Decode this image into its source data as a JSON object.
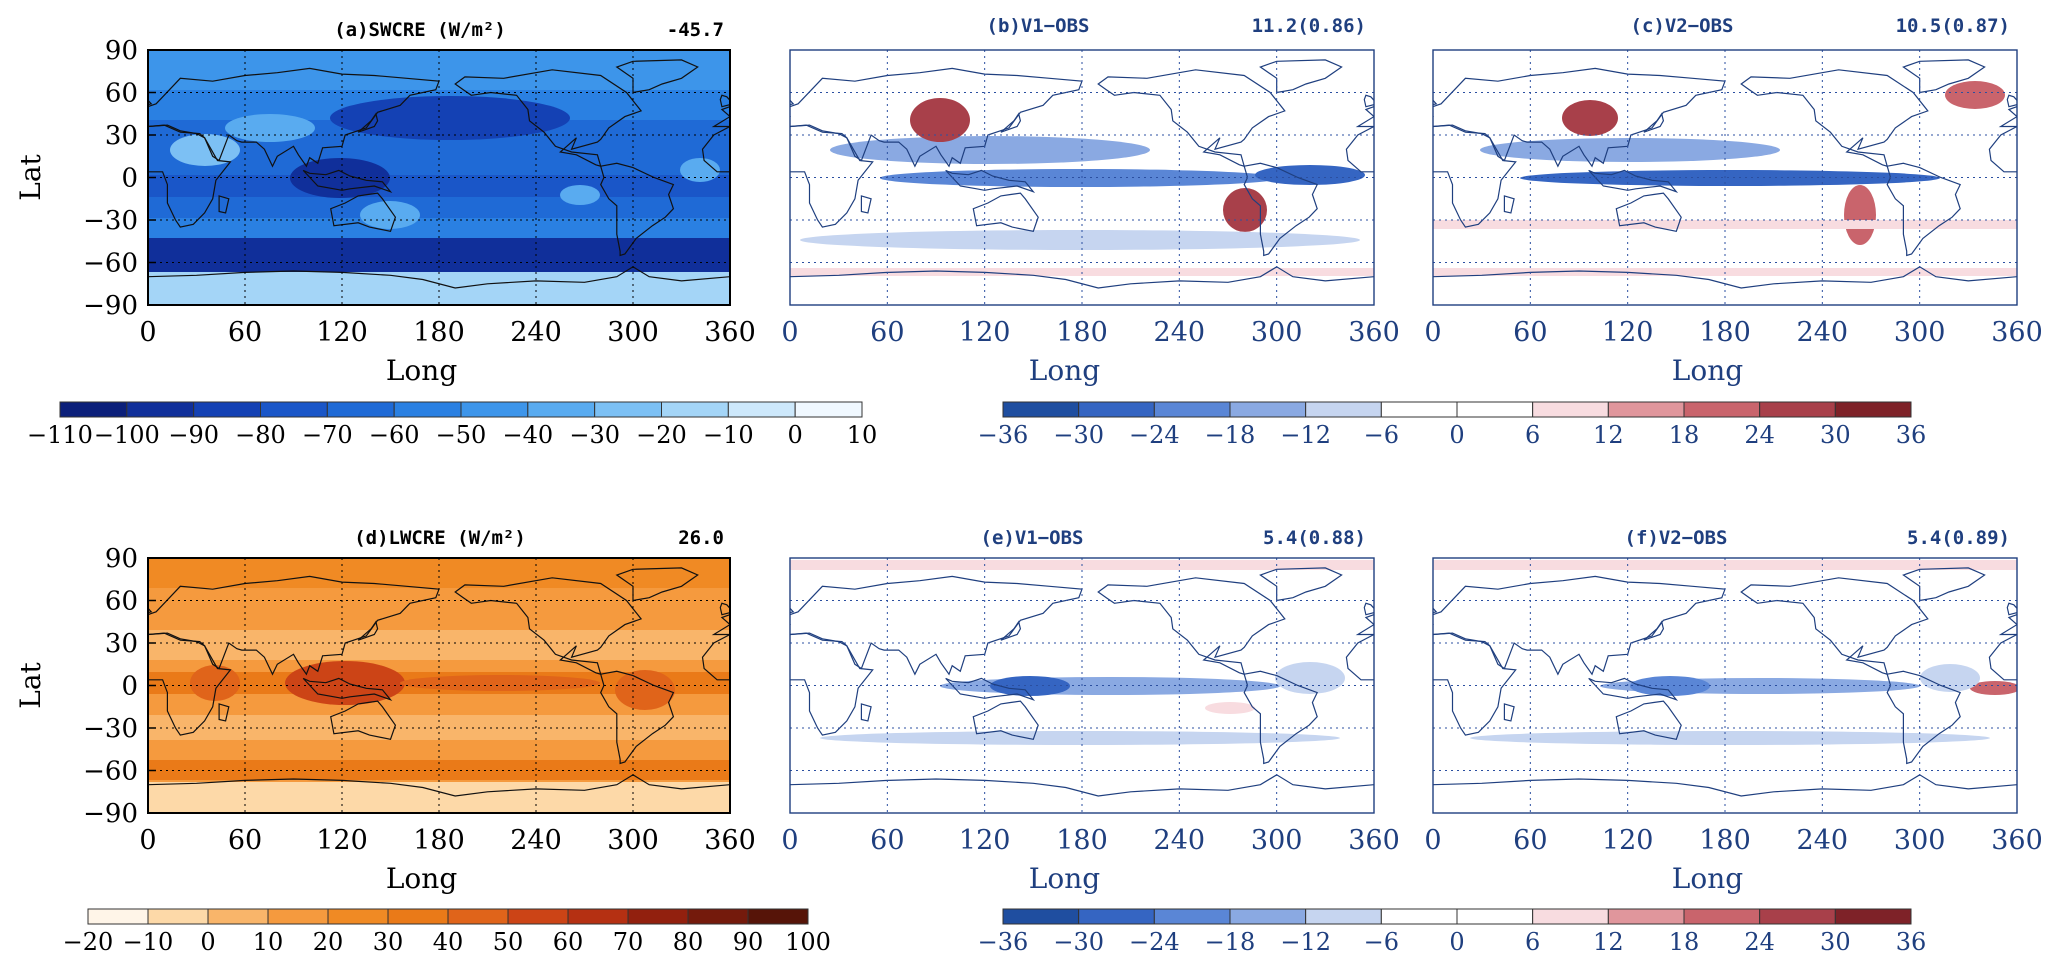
{
  "chart_data": [
    {
      "type": "heatmap",
      "panel": "a",
      "title": "(a)SWCRE (W/m²)",
      "global_mean": "-45.7",
      "xlabel": "Long",
      "ylabel": "Lat",
      "xlim": [
        0,
        360
      ],
      "ylim": [
        -90,
        90
      ],
      "xticks": [
        "0",
        "60",
        "120",
        "180",
        "240",
        "300",
        "360"
      ],
      "yticks": [
        "90",
        "60",
        "30",
        "0",
        "−30",
        "−60",
        "−90"
      ],
      "colorbar": {
        "levels": [
          "−110",
          "−100",
          "−90",
          "−80",
          "−70",
          "−60",
          "−50",
          "−40",
          "−30",
          "−20",
          "−10",
          "0",
          "10"
        ],
        "colors": [
          "#0b1f7a",
          "#102f9a",
          "#1441b4",
          "#1a56c8",
          "#1f6ad6",
          "#2a80e2",
          "#3d95ea",
          "#59abf0",
          "#7cc0f4",
          "#a4d5f7",
          "#cde8fb",
          "#f0f8ff"
        ]
      }
    },
    {
      "type": "heatmap",
      "panel": "b",
      "title": "(b)V1−OBS",
      "stat": "11.2(0.86)",
      "xlabel": "Long",
      "xlim": [
        0,
        360
      ],
      "ylim": [
        -90,
        90
      ],
      "xticks": [
        "0",
        "60",
        "120",
        "180",
        "240",
        "300",
        "360"
      ]
    },
    {
      "type": "heatmap",
      "panel": "c",
      "title": "(c)V2−OBS",
      "stat": "10.5(0.87)",
      "xlabel": "Long",
      "xlim": [
        0,
        360
      ],
      "ylim": [
        -90,
        90
      ],
      "xticks": [
        "0",
        "60",
        "120",
        "180",
        "240",
        "300",
        "360"
      ]
    },
    {
      "type": "heatmap",
      "panel": "d",
      "title": "(d)LWCRE (W/m²)",
      "global_mean": "26.0",
      "xlabel": "Long",
      "ylabel": "Lat",
      "xlim": [
        0,
        360
      ],
      "ylim": [
        -90,
        90
      ],
      "xticks": [
        "0",
        "60",
        "120",
        "180",
        "240",
        "300",
        "360"
      ],
      "yticks": [
        "90",
        "60",
        "30",
        "0",
        "−30",
        "−60",
        "−90"
      ],
      "colorbar": {
        "levels": [
          "−20",
          "−10",
          "0",
          "10",
          "20",
          "30",
          "40",
          "50",
          "60",
          "70",
          "80",
          "90",
          "100"
        ],
        "colors": [
          "#fff5e8",
          "#fdd9a8",
          "#f9b56a",
          "#f59a3e",
          "#f08a24",
          "#ea7a18",
          "#e0641a",
          "#cc4416",
          "#b53012",
          "#92200e",
          "#741a0c",
          "#561408"
        ]
      }
    },
    {
      "type": "heatmap",
      "panel": "e",
      "title": "(e)V1−OBS",
      "stat": "5.4(0.88)",
      "xlabel": "Long",
      "xlim": [
        0,
        360
      ],
      "ylim": [
        -90,
        90
      ],
      "xticks": [
        "0",
        "60",
        "120",
        "180",
        "240",
        "300",
        "360"
      ]
    },
    {
      "type": "heatmap",
      "panel": "f",
      "title": "(f)V2−OBS",
      "stat": "5.4(0.89)",
      "xlabel": "Long",
      "xlim": [
        0,
        360
      ],
      "ylim": [
        -90,
        90
      ],
      "xticks": [
        "0",
        "60",
        "120",
        "180",
        "240",
        "300",
        "360"
      ]
    }
  ],
  "diff_colorbar": {
    "levels": [
      "−36",
      "−30",
      "−24",
      "−18",
      "−12",
      "−6",
      "0",
      "6",
      "12",
      "18",
      "24",
      "30",
      "36"
    ],
    "colors": [
      "#1f4ea0",
      "#3565c2",
      "#5a86d6",
      "#8aa9e2",
      "#c6d5f0",
      "#ffffff",
      "#ffffff",
      "#f8dce0",
      "#e0969c",
      "#c9646c",
      "#a8404a",
      "#7e2228"
    ]
  },
  "colors": {
    "panel_text": "#000000",
    "diff_text": "#1f3f7f",
    "coast": "#111111",
    "diff_coast": "#1f3f7f",
    "grid": "#2b4fa0"
  }
}
